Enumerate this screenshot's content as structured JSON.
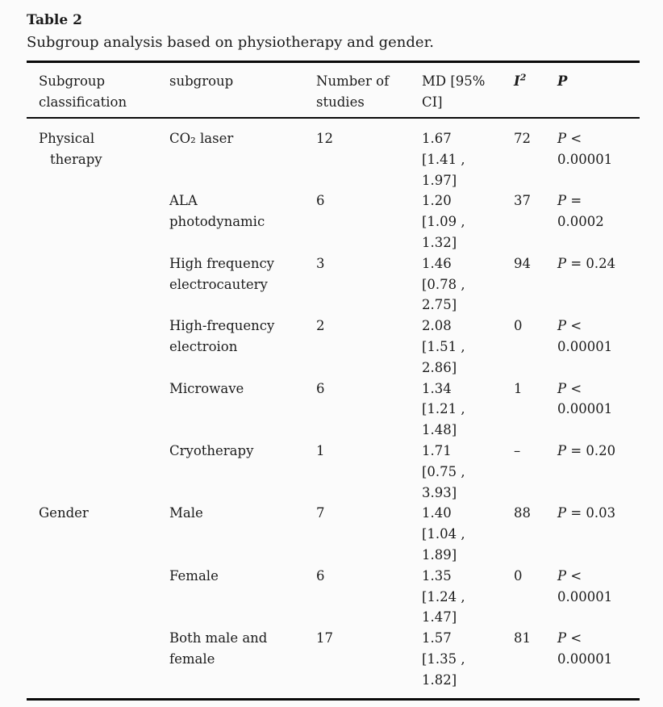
{
  "caption": {
    "label": "Table 2",
    "description": "Subgroup analysis based on physiotherapy and gender."
  },
  "table": {
    "headers": [
      {
        "label": "Subgroup\nclassification"
      },
      {
        "label": "subgroup"
      },
      {
        "label": "Number of\nstudies"
      },
      {
        "label": "MD [95%\nCI]"
      },
      {
        "label": "I",
        "sup": "2"
      },
      {
        "label": "P"
      }
    ],
    "rows": [
      {
        "classification": "Physical\ntherapy",
        "subgroup": "CO₂ laser",
        "n": "12",
        "md": "1.67\n[1.41 ,\n1.97]",
        "i2": "72",
        "p": "P <\n0.00001"
      },
      {
        "classification": "",
        "subgroup": "ALA\nphotodynamic",
        "n": "6",
        "md": "1.20\n[1.09 ,\n1.32]",
        "i2": "37",
        "p": "P =\n0.0002"
      },
      {
        "classification": "",
        "subgroup": "High frequency\nelectrocautery",
        "n": "3",
        "md": "1.46\n[0.78 ,\n2.75]",
        "i2": "94",
        "p": "P = 0.24"
      },
      {
        "classification": "",
        "subgroup": "High-frequency\nelectroion",
        "n": "2",
        "md": "2.08\n[1.51 ,\n2.86]",
        "i2": "0",
        "p": "P <\n0.00001"
      },
      {
        "classification": "",
        "subgroup": "Microwave",
        "n": "6",
        "md": "1.34\n[1.21 ,\n1.48]",
        "i2": "1",
        "p": "P <\n0.00001"
      },
      {
        "classification": "",
        "subgroup": "Cryotherapy",
        "n": "1",
        "md": "1.71\n[0.75 ,\n3.93]",
        "i2": "–",
        "p": "P = 0.20"
      },
      {
        "classification": "Gender",
        "subgroup": "Male",
        "n": "7",
        "md": "1.40\n[1.04 ,\n1.89]",
        "i2": "88",
        "p": "P = 0.03"
      },
      {
        "classification": "",
        "subgroup": "Female",
        "n": "6",
        "md": "1.35\n[1.24 ,\n1.47]",
        "i2": "0",
        "p": "P <\n0.00001"
      },
      {
        "classification": "",
        "subgroup": "Both male and\nfemale",
        "n": "17",
        "md": "1.57\n[1.35 ,\n1.82]",
        "i2": "81",
        "p": "P <\n0.00001"
      }
    ]
  }
}
